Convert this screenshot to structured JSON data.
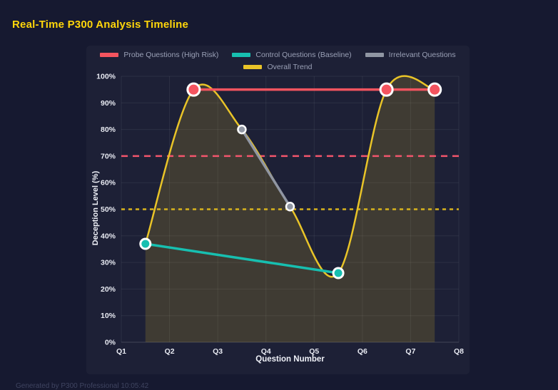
{
  "page": {
    "title": "Real-Time P300 Analysis Timeline",
    "footer": "Generated by P300 Professional  10:05:42",
    "colors": {
      "background": "#161930",
      "panel": "#1d2036",
      "title_text": "#ffd60a",
      "grid": "rgba(255,255,255,0.07)",
      "axis_edge": "rgba(255,255,255,0.16)",
      "tick_text": "#e8eaf2",
      "legend_text": "#9aa0b6",
      "footer_text": "#3f4460",
      "point_border": "#ffffff"
    }
  },
  "chart_data": {
    "type": "line",
    "title": "Real-Time P300 Analysis Timeline",
    "xlabel": "Question Number",
    "ylabel": "Deception Level (%)",
    "xlim": [
      1,
      8
    ],
    "ylim": [
      0,
      100
    ],
    "grid": true,
    "legend_position": "top",
    "x_ticks": {
      "values": [
        1,
        2,
        3,
        4,
        5,
        6,
        7,
        8
      ],
      "labels": [
        "Q1",
        "Q2",
        "Q3",
        "Q4",
        "Q5",
        "Q6",
        "Q7",
        "Q8"
      ]
    },
    "y_ticks": {
      "values": [
        0,
        10,
        20,
        30,
        40,
        50,
        60,
        70,
        80,
        90,
        100
      ],
      "labels": [
        "0%",
        "10%",
        "20%",
        "30%",
        "40%",
        "50%",
        "60%",
        "70%",
        "80%",
        "90%",
        "100%"
      ]
    },
    "series": [
      {
        "name": "Probe Questions (High Risk)",
        "color": "#f4545f",
        "shape": "straight",
        "x": [
          2.5,
          6.5,
          7.5
        ],
        "y": [
          95,
          95,
          95
        ],
        "line_width": 3.5,
        "point_radius": 8.5,
        "point_stroke_width": 3
      },
      {
        "name": "Control Questions (Baseline)",
        "color": "#17bfb0",
        "shape": "straight",
        "x": [
          1.5,
          5.5
        ],
        "y": [
          37,
          26
        ],
        "line_width": 3.5,
        "point_radius": 7,
        "point_stroke_width": 3
      },
      {
        "name": "Irrelevant Questions",
        "color": "#9096a3",
        "shape": "straight",
        "x": [
          3.5,
          4.5
        ],
        "y": [
          80,
          51
        ],
        "line_width": 3.5,
        "point_radius": 5.5,
        "point_stroke_width": 2.5
      },
      {
        "name": "Overall Trend",
        "color": "#e9c428",
        "shape": "spline",
        "fill": true,
        "fill_opacity": 0.17,
        "x": [
          1.5,
          2.5,
          3.5,
          4.5,
          5.5,
          6.5,
          7.5
        ],
        "y": [
          37,
          95,
          80,
          51,
          26,
          95,
          95
        ],
        "line_width": 2.5,
        "point_radius": 0,
        "point_stroke_width": 0
      }
    ],
    "threshold_lines": [
      {
        "y": 70,
        "color": "#f2556c",
        "dash": "9 7"
      },
      {
        "y": 50,
        "color": "#d9b41c",
        "dash": "5 5"
      }
    ]
  }
}
